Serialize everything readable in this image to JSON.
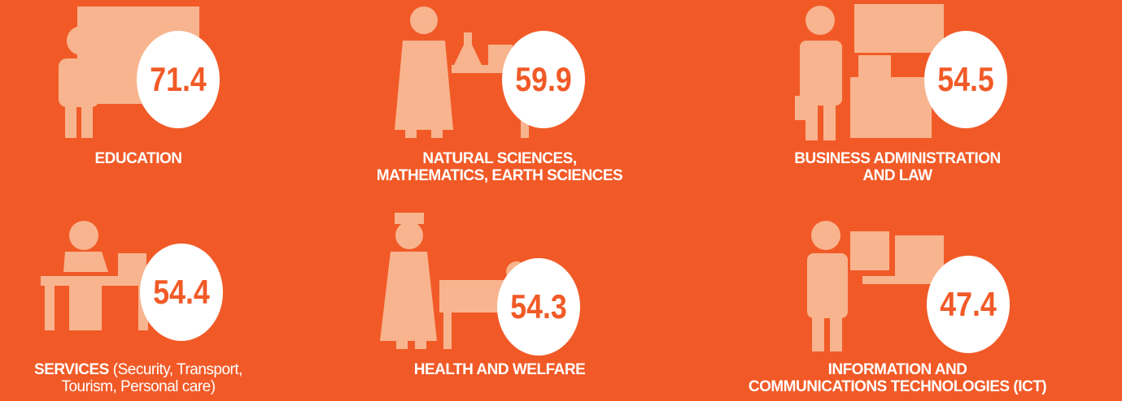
{
  "items": [
    {
      "value": "71.4",
      "label": [
        "EDUCATION"
      ]
    },
    {
      "value": "59.9",
      "label": [
        "NATURAL SCIENCES,",
        "MATHEMATICS, EARTH SCIENCES"
      ]
    },
    {
      "value": "54.5",
      "label": [
        "BUSINESS ADMINISTRATION",
        "AND LAW"
      ]
    },
    {
      "value": "54.4",
      "label": [
        "SERVICES"
      ],
      "detail": [
        "(Security, Transport,",
        "Tourism, Personal care)"
      ]
    },
    {
      "value": "54.3",
      "label": [
        "HEALTH AND WELFARE"
      ]
    },
    {
      "value": "47.4",
      "label": [
        "INFORMATION AND",
        "COMMUNICATIONS TECHNOLOGIES  (ICT)"
      ]
    }
  ]
}
